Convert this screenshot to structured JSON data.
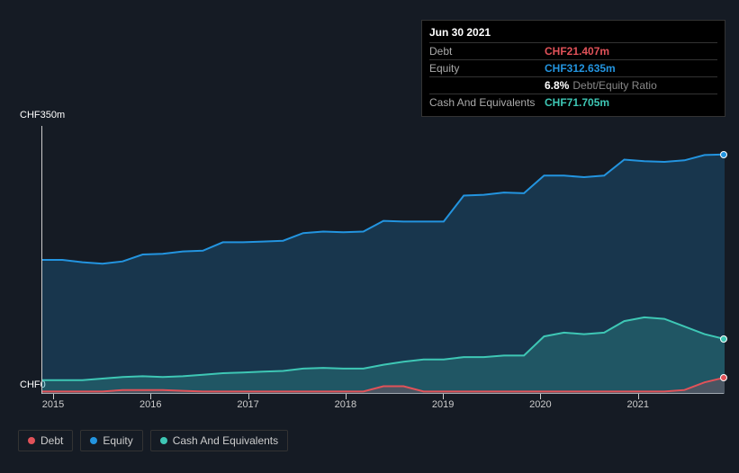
{
  "chart": {
    "type": "area",
    "background_color": "#151b24",
    "y_axis": {
      "max_label": "CHF350m",
      "zero_label": "CHF0",
      "ylim": [
        0,
        350
      ]
    },
    "x_axis": {
      "labels": [
        "2015",
        "2016",
        "2017",
        "2018",
        "2019",
        "2020",
        "2021"
      ],
      "fontsize": 11
    },
    "series": {
      "equity": {
        "label": "Equity",
        "color": "#2394df",
        "fill": "rgba(35,148,223,0.22)",
        "values": [
          175,
          175,
          172,
          170,
          173,
          182,
          183,
          186,
          187,
          198,
          198,
          199,
          200,
          210,
          212,
          211,
          212,
          226,
          225,
          225,
          225,
          259,
          260,
          263,
          262,
          285,
          285,
          283,
          285,
          306,
          304,
          303,
          305,
          312,
          312.6
        ]
      },
      "cash": {
        "label": "Cash And Equivalents",
        "color": "#3ec7b5",
        "fill": "rgba(62,199,181,0.22)",
        "values": [
          18,
          18,
          18,
          20,
          22,
          23,
          22,
          23,
          25,
          27,
          28,
          29,
          30,
          33,
          34,
          33,
          33,
          38,
          42,
          45,
          45,
          48,
          48,
          50,
          50,
          75,
          80,
          78,
          80,
          95,
          100,
          98,
          88,
          78,
          71.7
        ]
      },
      "debt": {
        "label": "Debt",
        "color": "#e15259",
        "fill": "rgba(225,82,89,0.22)",
        "values": [
          3,
          3,
          3,
          3,
          5,
          5,
          5,
          4,
          3,
          3,
          3,
          3,
          3,
          3,
          3,
          3,
          3,
          10,
          10,
          3,
          3,
          3,
          3,
          3,
          3,
          3,
          3,
          3,
          3,
          3,
          3,
          3,
          5,
          15,
          21.4
        ]
      }
    }
  },
  "tooltip": {
    "date": "Jun 30 2021",
    "debt": {
      "label": "Debt",
      "value": "CHF21.407m",
      "color": "#e15259"
    },
    "equity": {
      "label": "Equity",
      "value": "CHF312.635m",
      "color": "#2394df"
    },
    "ratio": {
      "value": "6.8%",
      "suffix": "Debt/Equity Ratio"
    },
    "cash": {
      "label": "Cash And Equivalents",
      "value": "CHF71.705m",
      "color": "#3ec7b5"
    }
  },
  "legend": {
    "items": [
      {
        "label": "Debt",
        "color": "#e15259"
      },
      {
        "label": "Equity",
        "color": "#2394df"
      },
      {
        "label": "Cash And Equivalents",
        "color": "#3ec7b5"
      }
    ]
  }
}
